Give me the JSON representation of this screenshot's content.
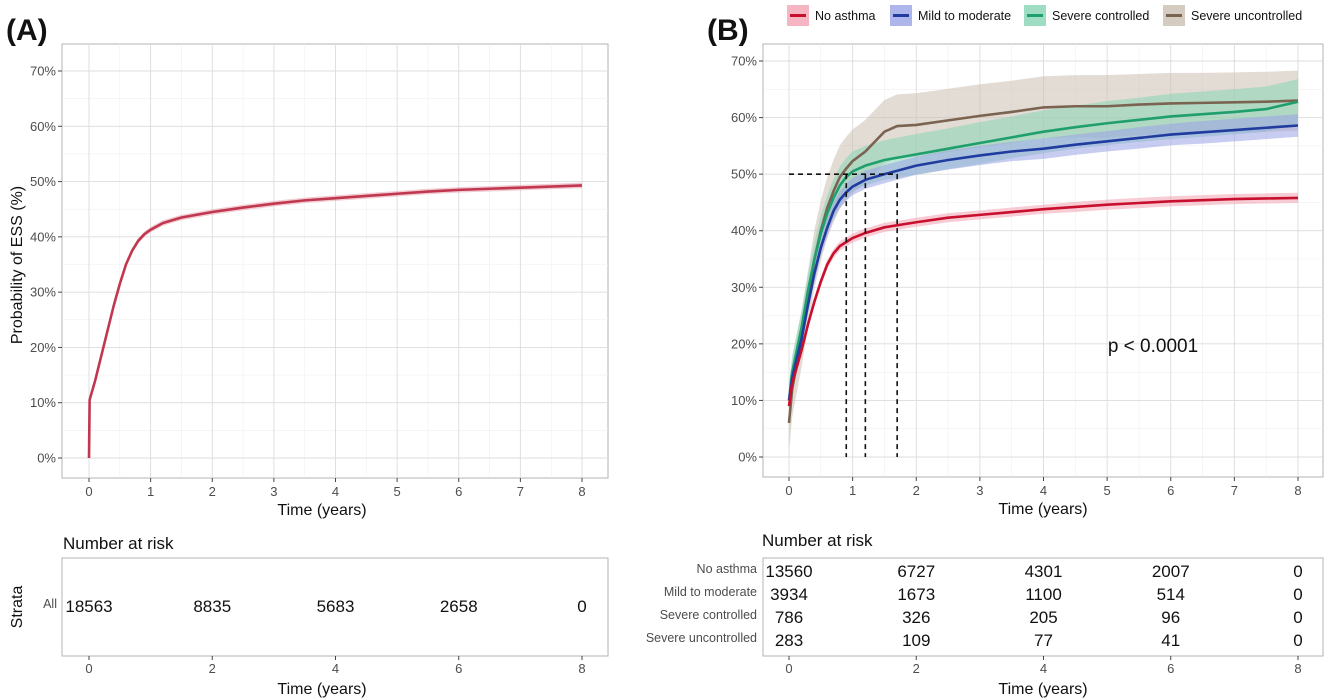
{
  "panels": {
    "a_label": "(A)",
    "b_label": "(B)"
  },
  "chart_data": [
    {
      "type": "line",
      "panel": "(A)",
      "xlabel": "Time (years)",
      "ylabel": "Probability of ESS (%)",
      "xlim": [
        0,
        8
      ],
      "ylim": [
        0,
        72
      ],
      "x_ticks": [
        "0",
        "1",
        "2",
        "3",
        "4",
        "5",
        "6",
        "7",
        "8"
      ],
      "y_ticks": [
        "0%",
        "10%",
        "20%",
        "30%",
        "40%",
        "50%",
        "60%",
        "70%"
      ],
      "grid": true,
      "series": [
        {
          "name": "All",
          "color": "#c0384f",
          "ci_fill": "#e8a0ae",
          "x": [
            0,
            0.01,
            0.1,
            0.2,
            0.3,
            0.4,
            0.5,
            0.6,
            0.7,
            0.8,
            0.9,
            1.0,
            1.2,
            1.5,
            2.0,
            2.5,
            3.0,
            3.5,
            4.0,
            4.5,
            5.0,
            5.5,
            6.0,
            6.5,
            7.0,
            7.5,
            8.0
          ],
          "y": [
            0,
            10.5,
            14,
            18.5,
            23,
            27.5,
            31.5,
            35,
            37.5,
            39.3,
            40.5,
            41.3,
            42.5,
            43.5,
            44.5,
            45.3,
            46,
            46.6,
            47,
            47.4,
            47.8,
            48.2,
            48.5,
            48.7,
            48.9,
            49.1,
            49.3
          ],
          "ci_half_width": 0.5
        }
      ],
      "risk_table": {
        "title": "Number at risk",
        "strata_label": "Strata",
        "xlabel": "Time (years)",
        "x_ticks": [
          "0",
          "2",
          "4",
          "6",
          "8"
        ],
        "rows": [
          {
            "label": "All",
            "values": [
              "18563",
              "8835",
              "5683",
              "2658",
              "0"
            ]
          }
        ]
      }
    },
    {
      "type": "line",
      "panel": "(B)",
      "xlabel": "Time (years)",
      "ylabel": "",
      "xlim": [
        0,
        8
      ],
      "ylim": [
        0,
        70
      ],
      "x_ticks": [
        "0",
        "1",
        "2",
        "3",
        "4",
        "5",
        "6",
        "7",
        "8"
      ],
      "y_ticks": [
        "0%",
        "10%",
        "20%",
        "30%",
        "40%",
        "50%",
        "60%",
        "70%"
      ],
      "grid": true,
      "legend_position": "top",
      "annotation": "p < 0.0001",
      "median_line": {
        "y": 50,
        "x_values": [
          0.9,
          1.2,
          1.7
        ]
      },
      "series": [
        {
          "name": "No asthma",
          "color": "#c8102e",
          "ci_fill": "#f2a3b3",
          "x": [
            0,
            0.05,
            0.2,
            0.3,
            0.4,
            0.5,
            0.6,
            0.7,
            0.8,
            0.9,
            1.0,
            1.2,
            1.5,
            2.0,
            2.5,
            3.0,
            3.5,
            4.0,
            4.5,
            5.0,
            5.5,
            6.0,
            6.5,
            7.0,
            7.5,
            8.0
          ],
          "y": [
            9,
            13,
            19,
            23.5,
            27.5,
            31,
            34,
            36,
            37.3,
            38,
            38.7,
            39.6,
            40.6,
            41.5,
            42.3,
            42.8,
            43.3,
            43.8,
            44.2,
            44.6,
            44.9,
            45.2,
            45.4,
            45.6,
            45.7,
            45.8
          ],
          "ci_half_width": [
            0.8,
            0.8,
            0.8,
            0.8,
            0.8,
            0.8,
            0.8,
            0.8,
            0.8,
            0.8,
            0.8,
            0.8,
            0.8,
            0.8,
            0.8,
            0.8,
            0.8,
            0.8,
            0.9,
            0.9,
            0.9,
            0.9,
            0.9,
            0.9,
            0.9,
            0.9
          ]
        },
        {
          "name": "Mild to moderate",
          "color": "#1f3c9e",
          "ci_fill": "#9aa3e6",
          "x": [
            0,
            0.05,
            0.2,
            0.3,
            0.4,
            0.5,
            0.6,
            0.7,
            0.8,
            0.9,
            1.0,
            1.2,
            1.5,
            2.0,
            2.5,
            3.0,
            3.5,
            4.0,
            4.5,
            5.0,
            5.5,
            6.0,
            6.5,
            7.0,
            7.5,
            8.0
          ],
          "y": [
            10,
            14,
            21,
            27,
            32.5,
            37,
            40.5,
            43.5,
            45.5,
            46.8,
            47.8,
            49,
            50,
            51.5,
            52.5,
            53.3,
            54,
            54.5,
            55.2,
            55.8,
            56.4,
            57,
            57.4,
            57.8,
            58.2,
            58.6
          ],
          "ci_half_width": [
            1.5,
            1.5,
            1.5,
            1.5,
            1.5,
            1.5,
            1.5,
            1.5,
            1.5,
            1.5,
            1.5,
            1.6,
            1.6,
            1.6,
            1.7,
            1.7,
            1.7,
            1.8,
            1.8,
            1.8,
            1.9,
            1.9,
            2,
            2,
            2,
            2
          ]
        },
        {
          "name": "Severe controlled",
          "color": "#1f9e6e",
          "ci_fill": "#86d5b5",
          "x": [
            0,
            0.05,
            0.2,
            0.3,
            0.4,
            0.5,
            0.6,
            0.7,
            0.8,
            0.9,
            1.0,
            1.2,
            1.5,
            2.0,
            2.5,
            3.0,
            3.5,
            4.0,
            4.5,
            5.0,
            5.5,
            6.0,
            6.5,
            7.0,
            7.5,
            8.0
          ],
          "y": [
            10,
            15,
            23,
            29.5,
            35,
            39.5,
            43,
            45.8,
            48,
            49.5,
            50.5,
            51.5,
            52.5,
            53.5,
            54.5,
            55.5,
            56.5,
            57.5,
            58.3,
            59,
            59.6,
            60.2,
            60.6,
            61,
            61.5,
            62.8
          ],
          "ci_half_width": [
            3,
            3,
            3,
            3,
            3,
            3.2,
            3.2,
            3.3,
            3.4,
            3.4,
            3.5,
            3.5,
            3.5,
            3.6,
            3.6,
            3.7,
            3.7,
            3.8,
            3.8,
            3.9,
            3.9,
            4,
            4,
            4,
            4,
            4
          ]
        },
        {
          "name": "Severe uncontrolled",
          "color": "#7a6350",
          "ci_fill": "#cbbfb2",
          "x": [
            0,
            0.05,
            0.2,
            0.3,
            0.4,
            0.5,
            0.6,
            0.7,
            0.8,
            0.9,
            1.0,
            1.2,
            1.5,
            1.7,
            2.0,
            2.5,
            3.0,
            3.5,
            4.0,
            4.5,
            5.0,
            5.5,
            6.0,
            6.5,
            7.0,
            7.5,
            8.0
          ],
          "y": [
            6,
            12,
            21,
            28,
            35,
            40,
            44,
            47,
            49.5,
            51,
            52.3,
            54,
            57.5,
            58.5,
            58.7,
            59.5,
            60.3,
            61,
            61.8,
            62,
            62,
            62.3,
            62.5,
            62.6,
            62.7,
            62.8,
            63
          ],
          "ci_half_width": [
            5,
            5,
            5,
            5,
            5.2,
            5.3,
            5.4,
            5.5,
            5.6,
            5.6,
            5.6,
            5.6,
            5.6,
            5.6,
            5.6,
            5.6,
            5.6,
            5.5,
            5.5,
            5.5,
            5.5,
            5.4,
            5.4,
            5.3,
            5.3,
            5.3,
            5.3
          ]
        }
      ],
      "risk_table": {
        "title": "Number at risk",
        "xlabel": "Time (years)",
        "x_ticks": [
          "0",
          "2",
          "4",
          "6",
          "8"
        ],
        "rows": [
          {
            "label": "No asthma",
            "values": [
              "13560",
              "6727",
              "4301",
              "2007",
              "0"
            ]
          },
          {
            "label": "Mild to moderate",
            "values": [
              "3934",
              "1673",
              "1100",
              "514",
              "0"
            ]
          },
          {
            "label": "Severe controlled",
            "values": [
              "786",
              "326",
              "205",
              "96",
              "0"
            ]
          },
          {
            "label": "Severe uncontrolled",
            "values": [
              "283",
              "109",
              "77",
              "41",
              "0"
            ]
          }
        ]
      }
    }
  ]
}
